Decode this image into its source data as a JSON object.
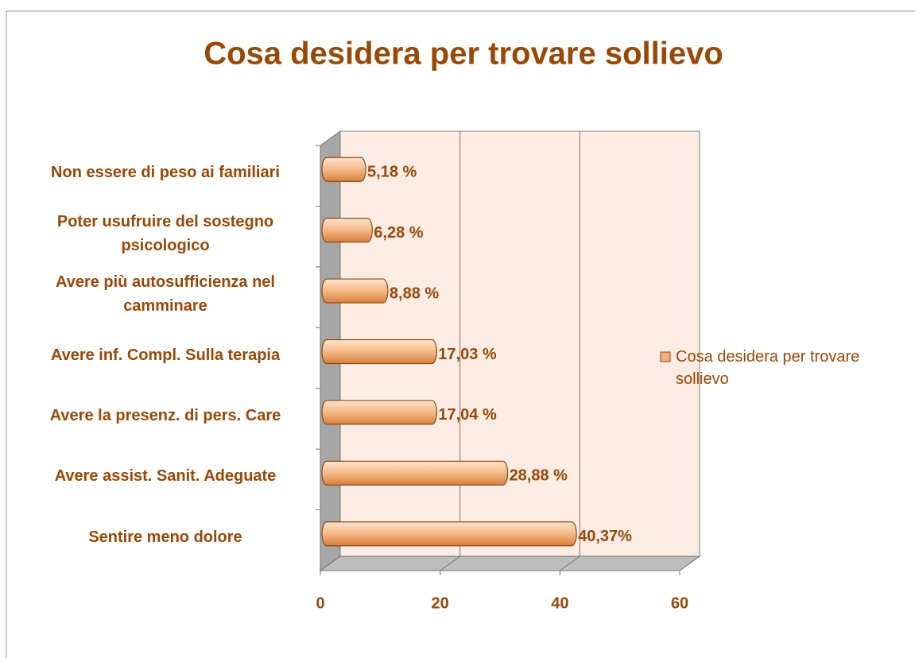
{
  "chart_data": {
    "type": "bar",
    "orientation": "horizontal",
    "title": "Cosa desidera per trovare sollievo",
    "categories": [
      "Non essere di peso ai familiari",
      "Poter usufruire del sostegno psicologico",
      "Avere più autosufficienza nel camminare",
      "Avere inf. Compl. Sulla terapia",
      "Avere la presenz. di pers. Care",
      "Avere assist. Sanit. Adeguate",
      "Sentire meno dolore"
    ],
    "series": [
      {
        "name": "Cosa desidera per trovare sollievo",
        "color": "#f4b07a",
        "values": [
          5.18,
          6.28,
          8.88,
          17.03,
          17.04,
          28.88,
          40.37
        ],
        "value_labels": [
          "5,18 %",
          "6,28 %",
          "8,88 %",
          "17,03 %",
          "17,04 %",
          "28,88 %",
          "40,37%"
        ]
      }
    ],
    "xlim": [
      0,
      60
    ],
    "xticks": [
      0,
      20,
      40,
      60
    ],
    "grid": true,
    "legend": "right"
  }
}
